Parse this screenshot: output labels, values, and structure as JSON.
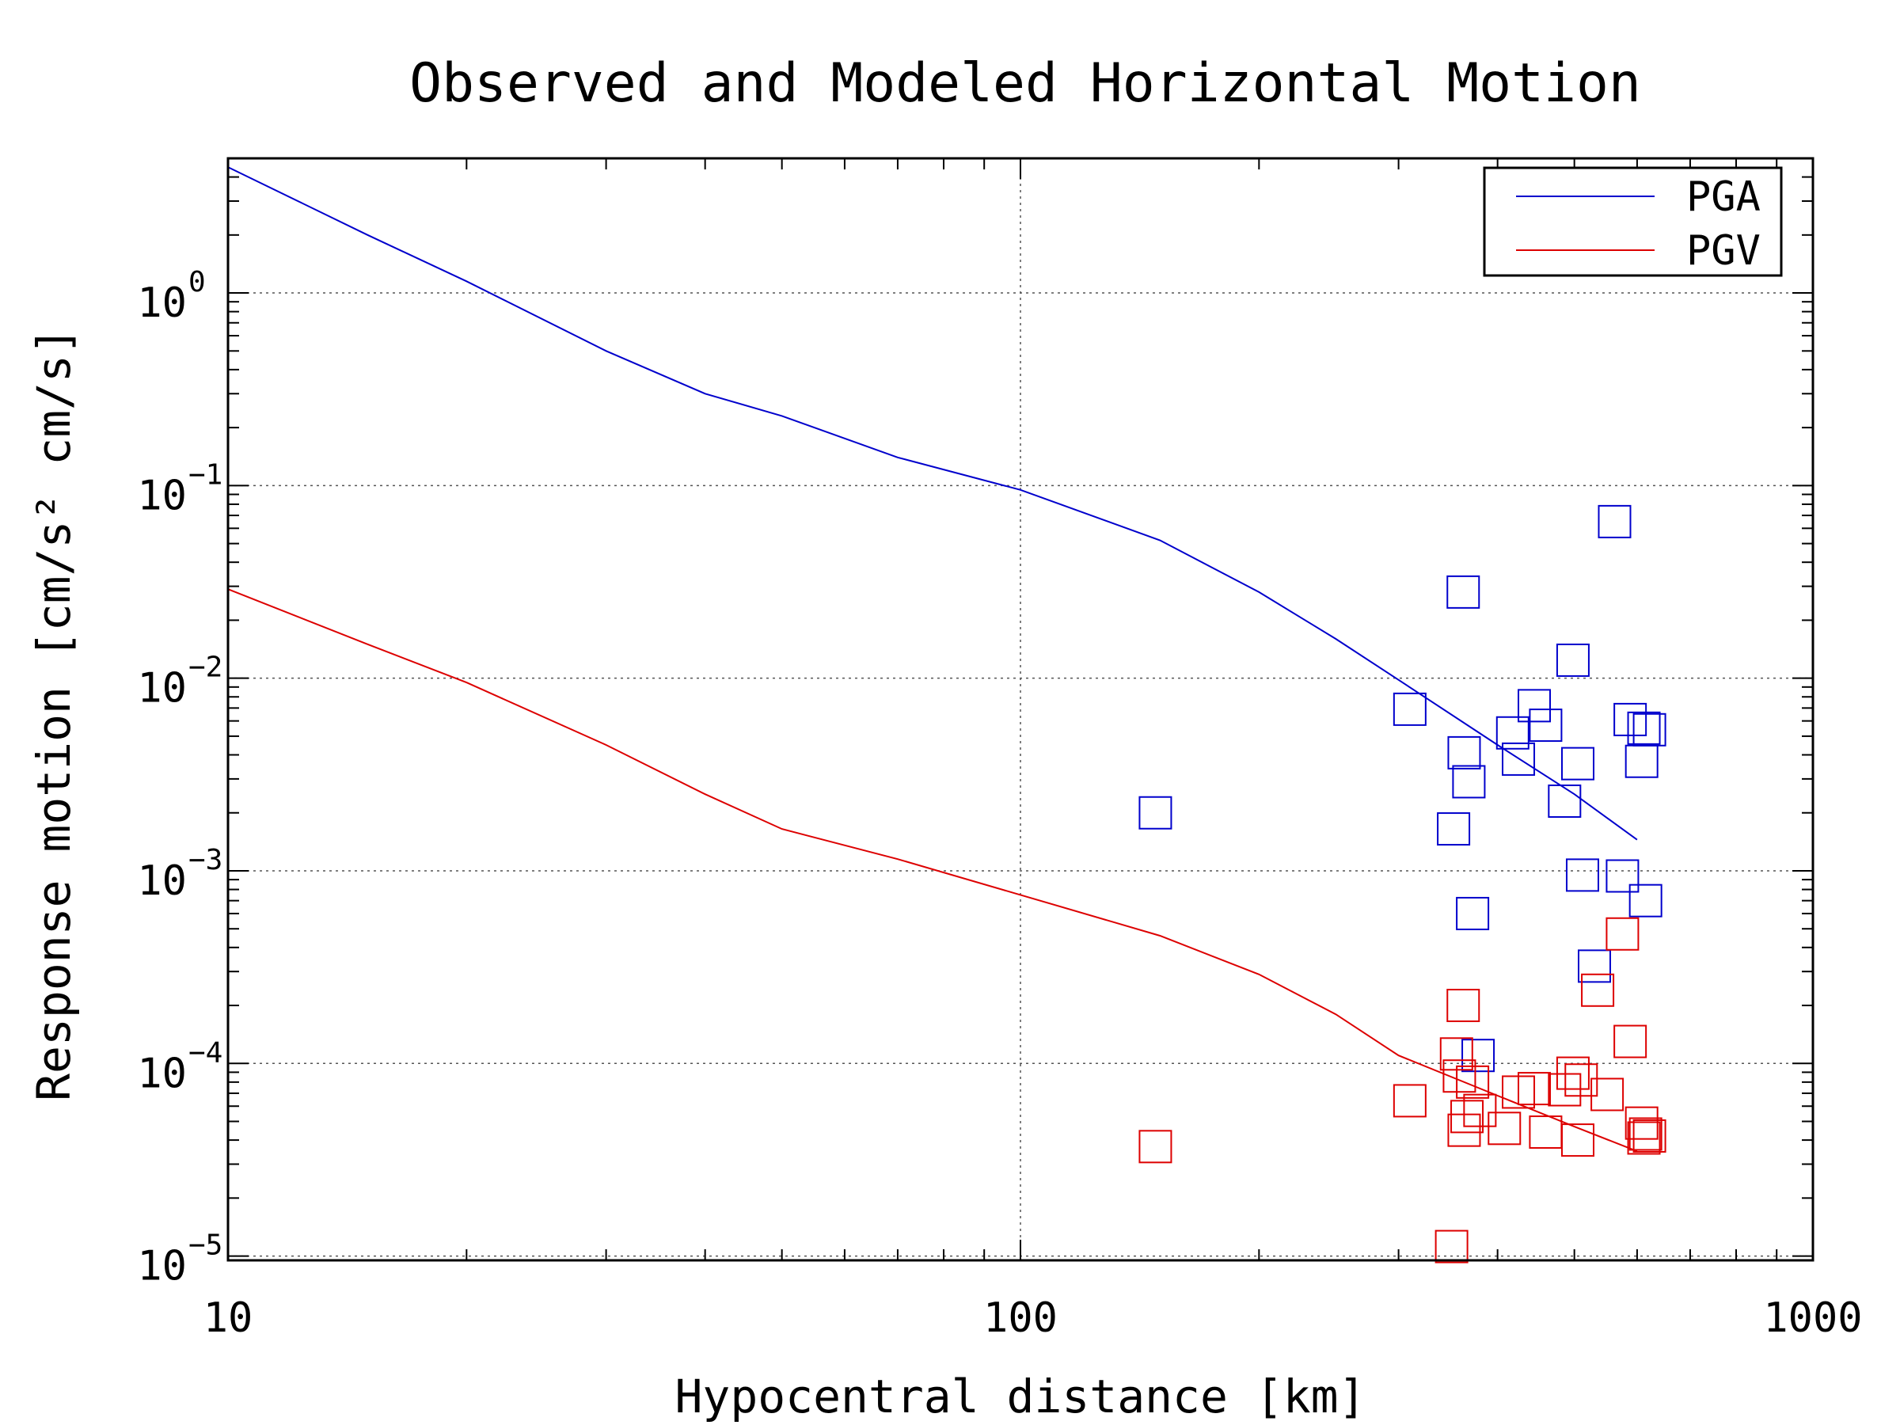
{
  "chart_data": {
    "type": "scatter",
    "title": "Observed and Modeled Horizontal Motion",
    "xlabel": "Hypocentral distance [km]",
    "ylabel": "Response motion [cm/s²  cm/s]",
    "xscale": "log",
    "yscale": "log",
    "xlim": [
      10,
      1000
    ],
    "ylim": [
      9.5e-06,
      5
    ],
    "grid": true,
    "legend_position": "top-right",
    "x_ticks": [
      "10",
      "100",
      "1000"
    ],
    "y_ticks": [
      {
        "value": 1,
        "base": "10",
        "exp": "0"
      },
      {
        "value": 0.1,
        "base": "10",
        "exp": "−1"
      },
      {
        "value": 0.01,
        "base": "10",
        "exp": "−2"
      },
      {
        "value": 0.001,
        "base": "10",
        "exp": "−3"
      },
      {
        "value": 0.0001,
        "base": "10",
        "exp": "−4"
      },
      {
        "value": 1e-05,
        "base": "10",
        "exp": "−5"
      }
    ],
    "colors": {
      "pga": "#0000cc",
      "pgv": "#dd0000"
    },
    "series": [
      {
        "name": "PGA",
        "kind": "model-line",
        "x": [
          10,
          15,
          20,
          30,
          40,
          50,
          70,
          100,
          150,
          200,
          250,
          300,
          400,
          500,
          600
        ],
        "y": [
          4.5,
          2.0,
          1.15,
          0.5,
          0.3,
          0.23,
          0.14,
          0.095,
          0.052,
          0.028,
          0.016,
          0.0098,
          0.0045,
          0.0025,
          0.00145
        ]
      },
      {
        "name": "PGV",
        "kind": "model-line",
        "x": [
          10,
          15,
          20,
          30,
          40,
          50,
          70,
          100,
          150,
          200,
          250,
          300,
          400,
          500,
          600
        ],
        "y": [
          0.029,
          0.015,
          0.0095,
          0.0045,
          0.0025,
          0.00165,
          0.00115,
          0.00075,
          0.00046,
          0.00029,
          0.00018,
          0.00011,
          6.8e-05,
          4.7e-05,
          3.5e-05
        ]
      },
      {
        "name": "PGA observed",
        "kind": "observed-points",
        "x": [
          148,
          310,
          352,
          362,
          363,
          368,
          372,
          378,
          418,
          425,
          445,
          460,
          486,
          498,
          505,
          512,
          530,
          562,
          575,
          588,
          608,
          612,
          615,
          622
        ],
        "y": [
          0.002,
          0.0069,
          0.00165,
          0.028,
          0.0041,
          0.0029,
          0.0006,
          0.00011,
          0.0052,
          0.0038,
          0.0072,
          0.0057,
          0.0023,
          0.0124,
          0.0036,
          0.00095,
          0.00032,
          0.065,
          0.00094,
          0.0061,
          0.0037,
          0.0055,
          0.0007,
          0.0054
        ]
      },
      {
        "name": "PGV observed",
        "kind": "observed-points",
        "x": [
          148,
          310,
          350,
          355,
          358,
          362,
          363,
          366,
          372,
          380,
          408,
          425,
          445,
          460,
          486,
          498,
          505,
          510,
          535,
          550,
          575,
          588,
          608,
          612,
          615,
          622
        ],
        "y": [
          3.7e-05,
          6.4e-05,
          1.12e-05,
          0.000112,
          8.6e-05,
          0.0002,
          4.5e-05,
          5.3e-05,
          8e-05,
          5.7e-05,
          4.6e-05,
          7.1e-05,
          7.4e-05,
          4.4e-05,
          7.3e-05,
          8.9e-05,
          4e-05,
          8.2e-05,
          0.00024,
          6.9e-05,
          0.00047,
          0.00013,
          4.9e-05,
          4.1e-05,
          4.3e-05,
          4.2e-05
        ]
      }
    ]
  }
}
